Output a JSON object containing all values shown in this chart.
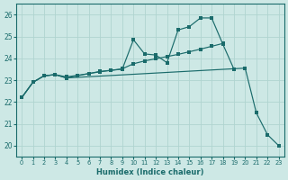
{
  "xlabel": "Humidex (Indice chaleur)",
  "bg_color": "#cde8e5",
  "grid_color": "#b0d4d0",
  "line_color": "#1a6b6b",
  "xlim": [
    -0.5,
    23.5
  ],
  "ylim": [
    19.5,
    26.5
  ],
  "yticks": [
    20,
    21,
    22,
    23,
    24,
    25,
    26
  ],
  "xticks": [
    0,
    1,
    2,
    3,
    4,
    5,
    6,
    7,
    8,
    9,
    10,
    11,
    12,
    13,
    14,
    15,
    16,
    17,
    18,
    19,
    20,
    21,
    22,
    23
  ],
  "line1_x": [
    0,
    1,
    2,
    3,
    4,
    5,
    6,
    7,
    8,
    9,
    10,
    11,
    12,
    13,
    14,
    15,
    16,
    17,
    18,
    19
  ],
  "line1_y": [
    22.2,
    22.9,
    23.2,
    23.25,
    23.1,
    23.2,
    23.3,
    23.4,
    23.45,
    23.5,
    24.85,
    24.2,
    24.15,
    23.8,
    25.3,
    25.45,
    25.85,
    25.85,
    24.65,
    23.5
  ],
  "line2_x": [
    0,
    1,
    2,
    3,
    4,
    5,
    6,
    7,
    8,
    9,
    10,
    11,
    12,
    13,
    14,
    15,
    16,
    17,
    18
  ],
  "line2_y": [
    22.2,
    22.9,
    23.2,
    23.25,
    23.15,
    23.22,
    23.3,
    23.38,
    23.45,
    23.52,
    23.75,
    23.88,
    23.98,
    24.08,
    24.18,
    24.3,
    24.42,
    24.55,
    24.68
  ],
  "line3_x": [
    0,
    1,
    2,
    3,
    4,
    20,
    21,
    22,
    23
  ],
  "line3_y": [
    22.2,
    22.9,
    23.2,
    23.25,
    23.1,
    23.55,
    21.5,
    20.5,
    20.0
  ]
}
